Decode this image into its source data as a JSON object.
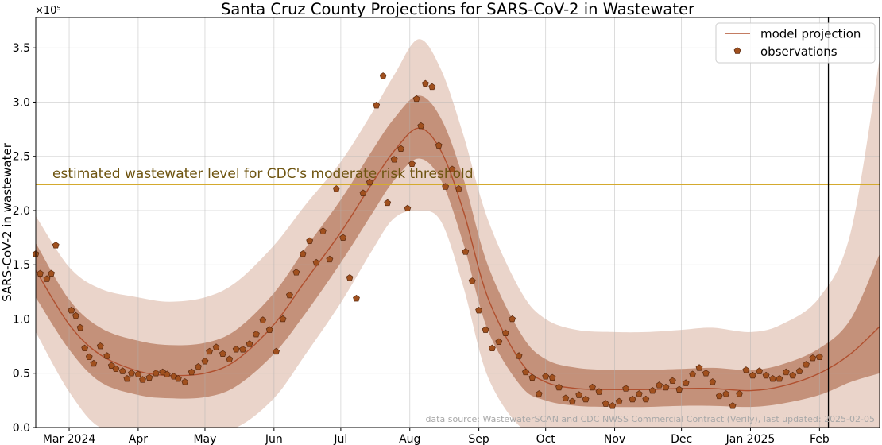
{
  "chart_data": {
    "type": "line",
    "title": "Santa Cruz County Projections for SARS-CoV-2 in Wastewater",
    "ylabel": "SARS-CoV-2 in wastewater",
    "y_multiplier_label": "×10⁵",
    "ylim": [
      0,
      3.78
    ],
    "y_ticks": [
      0.0,
      0.5,
      1.0,
      1.5,
      2.0,
      2.5,
      3.0,
      3.5
    ],
    "y_tick_labels": [
      "0.0",
      "0.5",
      "1.0",
      "1.5",
      "2.0",
      "2.5",
      "3.0",
      "3.5"
    ],
    "xlim": [
      "2024-02-15",
      "2025-02-28"
    ],
    "x_ticks": [
      "2024-03-01",
      "2024-04-01",
      "2024-05-01",
      "2024-06-01",
      "2024-07-01",
      "2024-08-01",
      "2024-09-01",
      "2024-10-01",
      "2024-11-01",
      "2024-12-01",
      "2025-01-01",
      "2025-02-01"
    ],
    "x_tick_labels": [
      "Mar 2024",
      "Apr",
      "May",
      "Jun",
      "Jul",
      "Aug",
      "Sep",
      "Oct",
      "Nov",
      "Dec",
      "Jan 2025",
      "Feb"
    ],
    "grid": true,
    "legend": {
      "position": "top-right",
      "entries": [
        "model projection",
        "observations"
      ]
    },
    "threshold": {
      "value": 2.24,
      "label": "estimated wastewater level for CDC's moderate risk threshold",
      "color": "#d4aa2e"
    },
    "vertical_line_date": "2025-02-05",
    "source_note": "data source: WastewaterSCAN and CDC NWSS Commercial Contract (Verily), last updated: 2025-02-05",
    "colors": {
      "line": "#b0502f",
      "marker": "#a0501e",
      "marker_edge": "#5a2a10",
      "band_inner": "#c4917a",
      "band_outer": "#ead4ca",
      "threshold": "#d4aa2e",
      "threshold_label": "#6e5410"
    },
    "model": {
      "x": [
        "2024-02-15",
        "2024-03-01",
        "2024-03-15",
        "2024-04-01",
        "2024-04-15",
        "2024-05-01",
        "2024-05-15",
        "2024-06-01",
        "2024-06-15",
        "2024-07-01",
        "2024-07-15",
        "2024-07-25",
        "2024-08-05",
        "2024-08-15",
        "2024-08-25",
        "2024-09-05",
        "2024-09-20",
        "2024-10-01",
        "2024-10-15",
        "2024-11-01",
        "2024-11-15",
        "2024-12-01",
        "2024-12-15",
        "2025-01-01",
        "2025-01-15",
        "2025-02-01",
        "2025-02-15",
        "2025-02-28"
      ],
      "y": [
        1.45,
        0.95,
        0.67,
        0.52,
        0.48,
        0.5,
        0.62,
        0.95,
        1.35,
        1.8,
        2.25,
        2.55,
        2.76,
        2.55,
        2.0,
        1.2,
        0.6,
        0.42,
        0.36,
        0.35,
        0.35,
        0.36,
        0.36,
        0.34,
        0.38,
        0.5,
        0.68,
        0.93
      ],
      "inner_lower": [
        1.2,
        0.72,
        0.42,
        0.3,
        0.27,
        0.28,
        0.38,
        0.68,
        1.05,
        1.52,
        1.97,
        2.28,
        2.48,
        2.28,
        1.7,
        0.9,
        0.38,
        0.25,
        0.2,
        0.19,
        0.19,
        0.2,
        0.2,
        0.19,
        0.22,
        0.3,
        0.42,
        0.5
      ],
      "inner_upper": [
        1.7,
        1.18,
        0.92,
        0.8,
        0.76,
        0.78,
        0.9,
        1.24,
        1.65,
        2.1,
        2.55,
        2.85,
        3.06,
        2.85,
        2.3,
        1.5,
        0.86,
        0.63,
        0.55,
        0.53,
        0.53,
        0.54,
        0.55,
        0.53,
        0.58,
        0.73,
        1.0,
        1.6
      ],
      "outer_lower": [
        0.88,
        0.33,
        0.0,
        0.0,
        0.0,
        0.0,
        0.0,
        0.27,
        0.67,
        1.15,
        1.63,
        1.93,
        2.0,
        1.9,
        1.3,
        0.47,
        0.0,
        0.0,
        0.0,
        0.0,
        0.0,
        0.0,
        0.0,
        0.0,
        0.0,
        0.0,
        0.0,
        0.0
      ],
      "outer_upper": [
        1.95,
        1.48,
        1.28,
        1.2,
        1.16,
        1.2,
        1.34,
        1.68,
        2.05,
        2.45,
        2.9,
        3.25,
        3.58,
        3.3,
        2.7,
        1.92,
        1.25,
        1.0,
        0.9,
        0.88,
        0.88,
        0.9,
        0.92,
        0.88,
        0.95,
        1.2,
        1.8,
        3.4
      ]
    },
    "observations": {
      "x": [
        "2024-02-15",
        "2024-02-17",
        "2024-02-20",
        "2024-02-22",
        "2024-02-24",
        "2024-03-02",
        "2024-03-04",
        "2024-03-06",
        "2024-03-08",
        "2024-03-10",
        "2024-03-12",
        "2024-03-15",
        "2024-03-18",
        "2024-03-20",
        "2024-03-22",
        "2024-03-25",
        "2024-03-27",
        "2024-03-29",
        "2024-04-01",
        "2024-04-03",
        "2024-04-06",
        "2024-04-09",
        "2024-04-12",
        "2024-04-14",
        "2024-04-17",
        "2024-04-19",
        "2024-04-22",
        "2024-04-25",
        "2024-04-28",
        "2024-05-01",
        "2024-05-03",
        "2024-05-06",
        "2024-05-09",
        "2024-05-12",
        "2024-05-15",
        "2024-05-18",
        "2024-05-21",
        "2024-05-24",
        "2024-05-27",
        "2024-05-30",
        "2024-06-02",
        "2024-06-05",
        "2024-06-08",
        "2024-06-11",
        "2024-06-14",
        "2024-06-17",
        "2024-06-20",
        "2024-06-23",
        "2024-06-26",
        "2024-06-29",
        "2024-07-02",
        "2024-07-05",
        "2024-07-08",
        "2024-07-11",
        "2024-07-14",
        "2024-07-17",
        "2024-07-20",
        "2024-07-22",
        "2024-07-25",
        "2024-07-28",
        "2024-07-31",
        "2024-08-02",
        "2024-08-04",
        "2024-08-06",
        "2024-08-08",
        "2024-08-11",
        "2024-08-14",
        "2024-08-17",
        "2024-08-20",
        "2024-08-23",
        "2024-08-26",
        "2024-08-29",
        "2024-09-01",
        "2024-09-04",
        "2024-09-07",
        "2024-09-10",
        "2024-09-13",
        "2024-09-16",
        "2024-09-19",
        "2024-09-22",
        "2024-09-25",
        "2024-09-28",
        "2024-10-01",
        "2024-10-04",
        "2024-10-07",
        "2024-10-10",
        "2024-10-13",
        "2024-10-16",
        "2024-10-19",
        "2024-10-22",
        "2024-10-25",
        "2024-10-28",
        "2024-10-31",
        "2024-11-03",
        "2024-11-06",
        "2024-11-09",
        "2024-11-12",
        "2024-11-15",
        "2024-11-18",
        "2024-11-21",
        "2024-11-24",
        "2024-11-27",
        "2024-11-30",
        "2024-12-03",
        "2024-12-06",
        "2024-12-09",
        "2024-12-12",
        "2024-12-15",
        "2024-12-18",
        "2024-12-21",
        "2024-12-24",
        "2024-12-27",
        "2024-12-30",
        "2025-01-02",
        "2025-01-05",
        "2025-01-08",
        "2025-01-11",
        "2025-01-14",
        "2025-01-17",
        "2025-01-20",
        "2025-01-23",
        "2025-01-26",
        "2025-01-29",
        "2025-02-01"
      ],
      "y": [
        1.6,
        1.42,
        1.37,
        1.42,
        1.68,
        1.08,
        1.03,
        0.92,
        0.73,
        0.65,
        0.59,
        0.75,
        0.66,
        0.57,
        0.54,
        0.52,
        0.45,
        0.5,
        0.49,
        0.44,
        0.46,
        0.5,
        0.51,
        0.49,
        0.47,
        0.45,
        0.42,
        0.51,
        0.56,
        0.61,
        0.7,
        0.74,
        0.68,
        0.63,
        0.72,
        0.72,
        0.77,
        0.86,
        0.99,
        0.9,
        0.7,
        1.0,
        1.22,
        1.43,
        1.6,
        1.72,
        1.52,
        1.81,
        1.55,
        2.2,
        1.75,
        1.38,
        1.19,
        2.16,
        2.26,
        2.97,
        3.24,
        2.07,
        2.47,
        2.57,
        2.02,
        2.43,
        3.03,
        2.78,
        3.17,
        3.14,
        2.6,
        2.22,
        2.38,
        2.2,
        1.62,
        1.35,
        1.08,
        0.9,
        0.73,
        0.79,
        0.87,
        1.0,
        0.66,
        0.51,
        0.46,
        0.31,
        0.47,
        0.46,
        0.37,
        0.27,
        0.24,
        0.3,
        0.26,
        0.37,
        0.33,
        0.22,
        0.2,
        0.24,
        0.36,
        0.26,
        0.31,
        0.26,
        0.34,
        0.39,
        0.37,
        0.43,
        0.35,
        0.41,
        0.49,
        0.55,
        0.5,
        0.42,
        0.29,
        0.31,
        0.2,
        0.31,
        0.53,
        0.48,
        0.52,
        0.48,
        0.45,
        0.45,
        0.51,
        0.48,
        0.52,
        0.58,
        0.64,
        0.65
      ]
    }
  }
}
